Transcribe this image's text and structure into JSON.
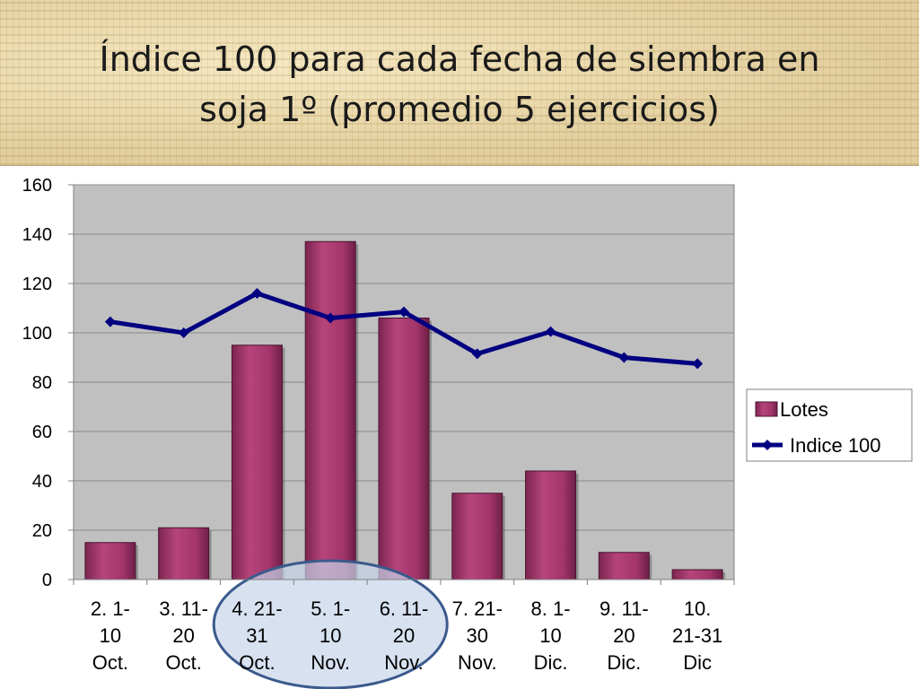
{
  "slide": {
    "title": "Índice 100 para cada fecha de siembra en\nsoja 1º (promedio 5 ejercicios)"
  },
  "colors": {
    "bar": "#a8386b",
    "bar_edge": "#4a1530",
    "line": "#000080",
    "plot_bg": "#c0c0c0",
    "highlight_fill": "#c6d4ea",
    "highlight_stroke": "#3b5a8c"
  },
  "chart_data": {
    "type": "bar",
    "categories": [
      [
        "2. 1-",
        "10",
        "Oct."
      ],
      [
        "3. 11-",
        "20",
        "Oct."
      ],
      [
        "4. 21-",
        "31",
        "Oct."
      ],
      [
        "5. 1-",
        "10",
        "Nov."
      ],
      [
        "6. 11-",
        "20",
        "Nov."
      ],
      [
        "7. 21-",
        "30",
        "Nov."
      ],
      [
        "8. 1-",
        "10",
        "Dic."
      ],
      [
        "9. 11-",
        "20",
        "Dic."
      ],
      [
        "10.",
        "21-31",
        "Dic"
      ]
    ],
    "series": [
      {
        "name": "Lotes",
        "type": "bar",
        "values": [
          15,
          21,
          95,
          137,
          106,
          35,
          44,
          11,
          4
        ]
      },
      {
        "name": "Indice 100",
        "type": "line",
        "values": [
          104.5,
          100,
          116,
          106,
          108.5,
          91.5,
          100.5,
          90,
          87.5
        ]
      }
    ],
    "ylim": [
      0,
      160
    ],
    "yticks": [
      0,
      20,
      40,
      60,
      80,
      100,
      120,
      140,
      160
    ],
    "grid": true,
    "legend": "right",
    "highlight": {
      "categories": [
        2,
        3,
        4
      ],
      "shape": "ellipse"
    }
  }
}
